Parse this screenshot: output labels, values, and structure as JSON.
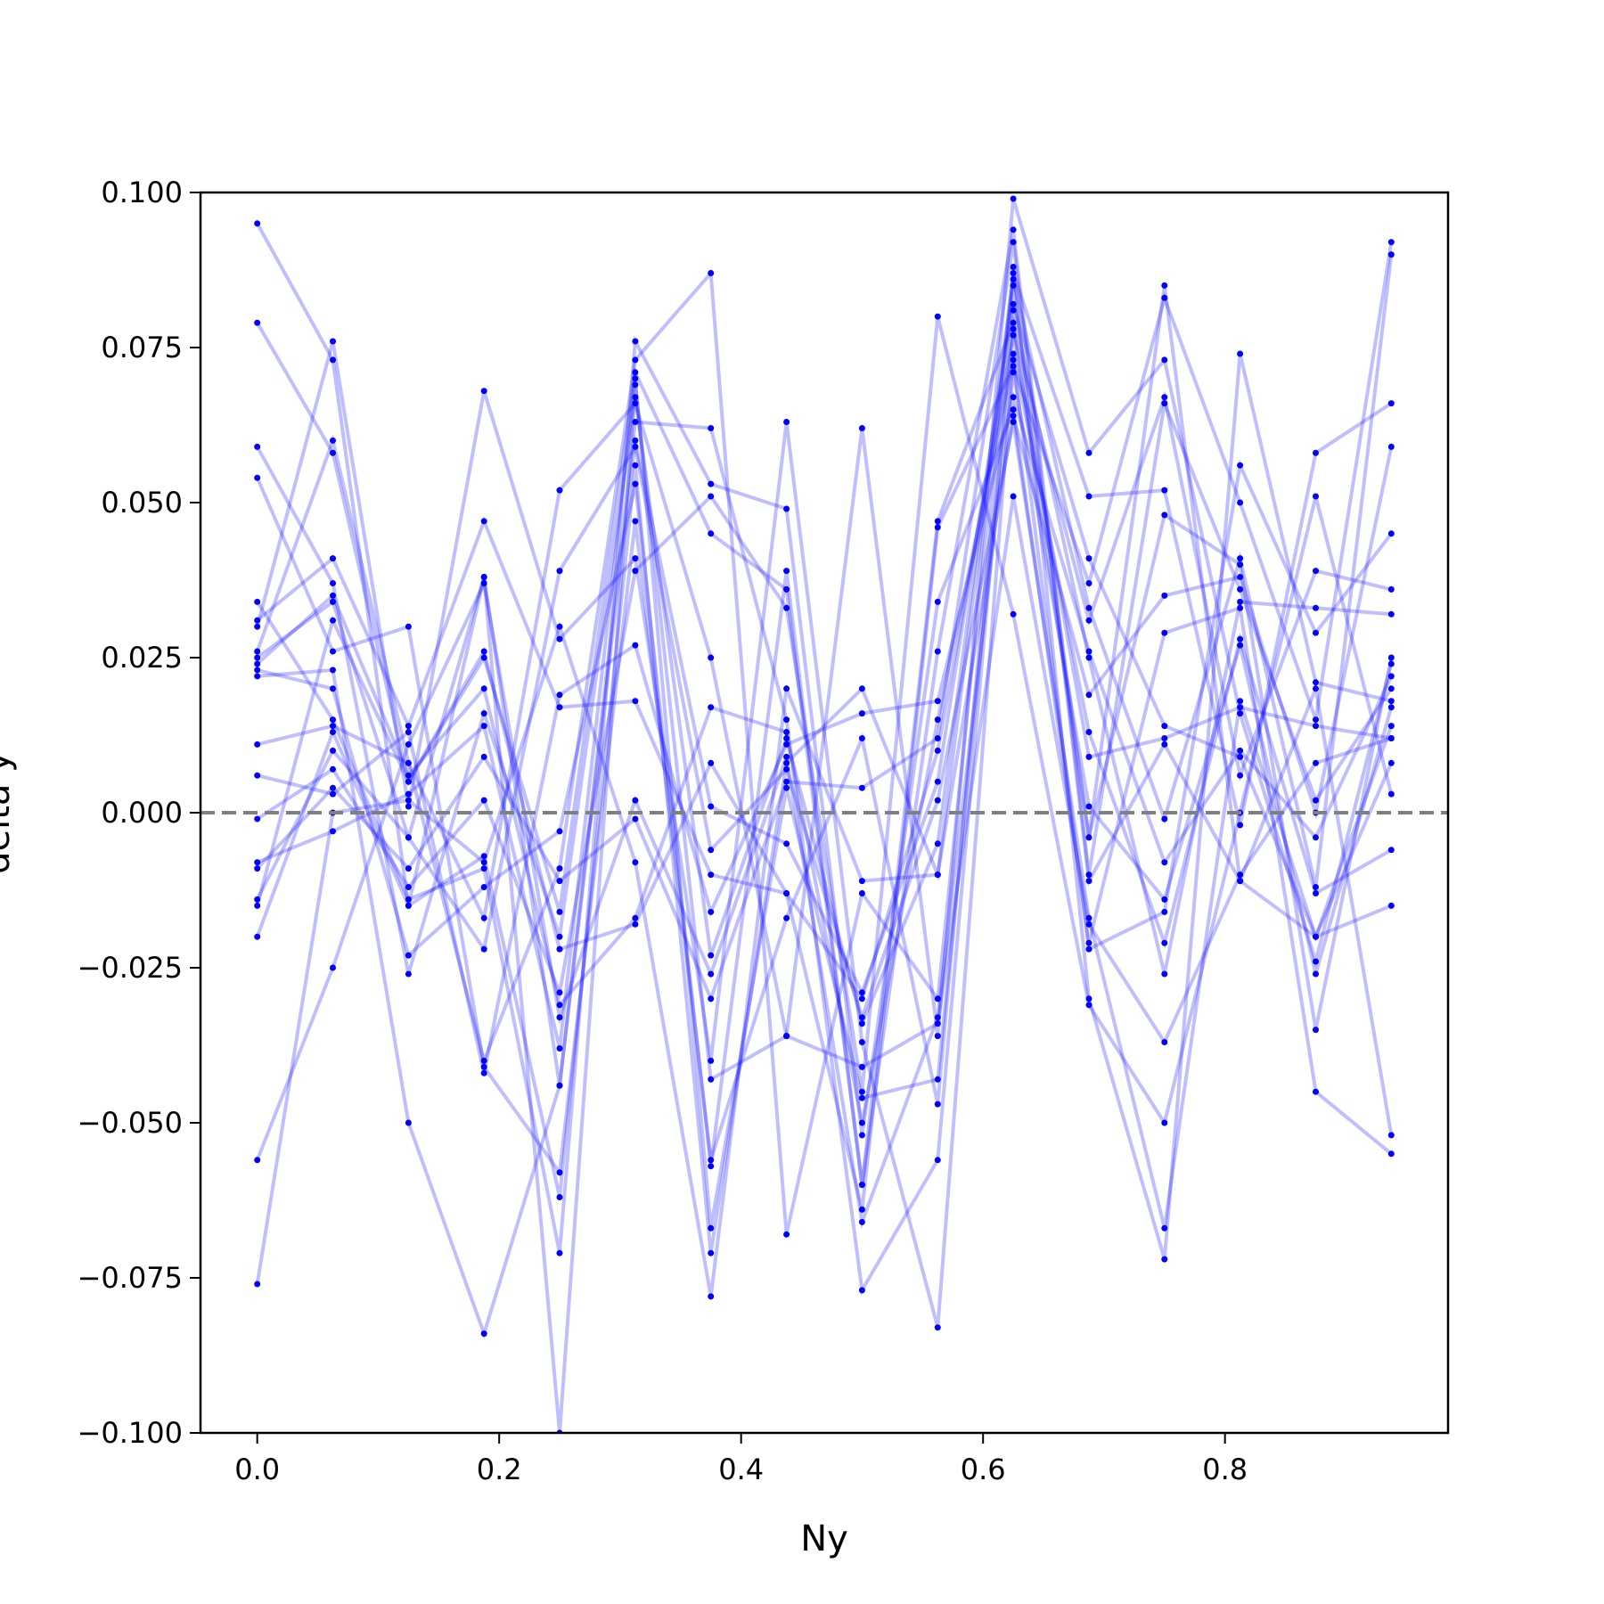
{
  "chart_data": {
    "type": "line",
    "title": "",
    "xlabel": "Ny",
    "ylabel": "delta y",
    "xlim": [
      -0.0469,
      0.9844
    ],
    "ylim": [
      -0.1,
      0.1
    ],
    "xticks": [
      0.0,
      0.2,
      0.4,
      0.6,
      0.8
    ],
    "xtick_labels": [
      "0.0",
      "0.2",
      "0.4",
      "0.6",
      "0.8"
    ],
    "yticks": [
      -0.1,
      -0.075,
      -0.05,
      -0.025,
      0.0,
      0.025,
      0.05,
      0.075,
      0.1
    ],
    "ytick_labels": [
      "−0.100",
      "−0.075",
      "−0.050",
      "−0.025",
      "0.000",
      "0.025",
      "0.050",
      "0.075",
      "0.100"
    ],
    "grid": false,
    "reference_line": {
      "y": 0.0,
      "style": "dashed",
      "color": "#808080"
    },
    "line_color": "#0000ff",
    "x": [
      0.0,
      0.0625,
      0.125,
      0.1875,
      0.25,
      0.3125,
      0.375,
      0.4375,
      0.5,
      0.5625,
      0.625,
      0.6875,
      0.75,
      0.8125,
      0.875,
      0.9375
    ],
    "series": [
      {
        "values": [
          0.095,
          0.073,
          -0.015,
          0.038,
          -0.044,
          0.06,
          0.001,
          -0.005,
          -0.029,
          0.005,
          0.082,
          0.041,
          0.014,
          0.009,
          -0.02,
          0.014
        ]
      },
      {
        "values": [
          0.079,
          0.058,
          0.005,
          0.025,
          -0.016,
          0.071,
          0.045,
          0.036,
          -0.06,
          0.026,
          0.094,
          -0.01,
          0.066,
          0.036,
          0.002,
          0.02
        ]
      },
      {
        "values": [
          0.059,
          0.037,
          -0.026,
          0.016,
          -0.02,
          0.067,
          -0.023,
          0.012,
          -0.034,
          -0.005,
          0.086,
          0.033,
          -0.001,
          0.041,
          -0.012,
          0.09
        ]
      },
      {
        "values": [
          0.054,
          0.026,
          0.03,
          -0.041,
          -0.058,
          0.047,
          -0.056,
          -0.017,
          0.012,
          -0.047,
          0.087,
          0.051,
          0.052,
          -0.002,
          0.058,
          0.066
        ]
      },
      {
        "values": [
          0.034,
          0.015,
          -0.014,
          -0.009,
          -0.071,
          0.076,
          0.053,
          0.049,
          -0.052,
          0.034,
          0.065,
          -0.021,
          0.029,
          0.033,
          -0.045,
          -0.055
        ]
      },
      {
        "values": [
          0.031,
          0.041,
          0.014,
          0.047,
          0.017,
          0.018,
          -0.01,
          -0.013,
          -0.064,
          0.046,
          0.072,
          0.037,
          0.083,
          0.05,
          0.015,
          0.092
        ]
      },
      {
        "values": [
          0.03,
          0.076,
          0.001,
          0.068,
          0.028,
          0.041,
          -0.04,
          0.063,
          -0.037,
          -0.083,
          0.074,
          0.013,
          -0.021,
          0.028,
          -0.013,
          -0.006
        ]
      },
      {
        "values": [
          0.026,
          0.06,
          0.008,
          -0.04,
          -0.009,
          0.073,
          0.087,
          -0.068,
          -0.013,
          -0.03,
          0.088,
          -0.03,
          -0.072,
          0.074,
          0.021,
          0.018
        ]
      },
      {
        "values": [
          0.025,
          0.034,
          -0.004,
          0.038,
          -0.1,
          0.069,
          -0.043,
          -0.036,
          0.062,
          -0.036,
          0.099,
          0.058,
          0.073,
          0.016,
          -0.024,
          0.024
        ]
      },
      {
        "values": [
          0.024,
          0.035,
          0.006,
          0.02,
          -0.031,
          -0.017,
          0.017,
          0.013,
          -0.05,
          0.015,
          0.073,
          -0.022,
          -0.016,
          0.056,
          0.029,
          0.045
        ]
      },
      {
        "values": [
          0.023,
          0.02,
          -0.023,
          -0.012,
          -0.003,
          0.053,
          -0.057,
          0.039,
          -0.06,
          0.047,
          0.079,
          -0.004,
          0.048,
          0.04,
          -0.035,
          0.025
        ]
      },
      {
        "values": [
          0.022,
          0.023,
          -0.05,
          -0.084,
          -0.044,
          0.063,
          0.062,
          0.015,
          -0.077,
          -0.056,
          0.081,
          0.025,
          -0.026,
          0.034,
          0.033,
          0.032
        ]
      },
      {
        "values": [
          0.011,
          0.014,
          0.008,
          -0.017,
          0.052,
          0.066,
          0.025,
          -0.036,
          -0.041,
          -0.034,
          0.051,
          -0.018,
          -0.037,
          -0.01,
          0.008,
          0.012
        ]
      },
      {
        "values": [
          0.006,
          0.003,
          0.013,
          -0.042,
          0.019,
          0.027,
          -0.016,
          0.011,
          0.016,
          0.018,
          0.067,
          0.026,
          -0.008,
          0.01,
          -0.004,
          0.022
        ]
      },
      {
        "values": [
          -0.001,
          0.007,
          -0.012,
          0.002,
          -0.029,
          0.039,
          0.051,
          0.033,
          -0.045,
          0.08,
          0.032,
          -0.031,
          -0.05,
          0.0,
          0.051,
          0.003
        ]
      },
      {
        "values": [
          -0.008,
          -0.003,
          0.003,
          0.014,
          -0.038,
          0.07,
          -0.067,
          0.004,
          -0.046,
          -0.043,
          0.078,
          0.031,
          0.067,
          0.006,
          0.039,
          0.036
        ]
      },
      {
        "values": [
          -0.009,
          0.004,
          -0.009,
          0.009,
          -0.011,
          -0.001,
          -0.03,
          0.005,
          0.004,
          0.012,
          0.092,
          -0.011,
          0.011,
          -0.011,
          0.02,
          -0.052
        ]
      },
      {
        "values": [
          -0.014,
          0.01,
          -0.004,
          -0.022,
          0.039,
          0.059,
          -0.006,
          0.007,
          -0.033,
          0.002,
          0.063,
          -0.017,
          -0.067,
          0.018,
          -0.02,
          0.008
        ]
      },
      {
        "values": [
          -0.015,
          0.031,
          0.005,
          0.026,
          -0.022,
          -0.018,
          0.008,
          -0.013,
          -0.03,
          0.01,
          0.077,
          0.009,
          0.012,
          0.017,
          0.014,
          0.012
        ]
      },
      {
        "values": [
          -0.02,
          0.013,
          -0.015,
          -0.007,
          -0.062,
          0.056,
          -0.071,
          0.008,
          0.02,
          -0.01,
          0.064,
          0.019,
          0.035,
          0.038,
          0.0,
          0.059
        ]
      },
      {
        "values": [
          -0.056,
          -0.025,
          0.011,
          0.037,
          -0.033,
          0.002,
          -0.026,
          0.009,
          -0.066,
          -0.033,
          0.071,
          0.001,
          -0.014,
          0.027,
          -0.026,
          0.017
        ]
      },
      {
        "values": [
          -0.076,
          0.0,
          0.002,
          -0.008,
          0.03,
          -0.008,
          -0.078,
          0.02,
          -0.011,
          -0.01,
          0.085,
          -0.004,
          0.085,
          -0.011,
          -0.02,
          -0.015
        ]
      }
    ]
  }
}
